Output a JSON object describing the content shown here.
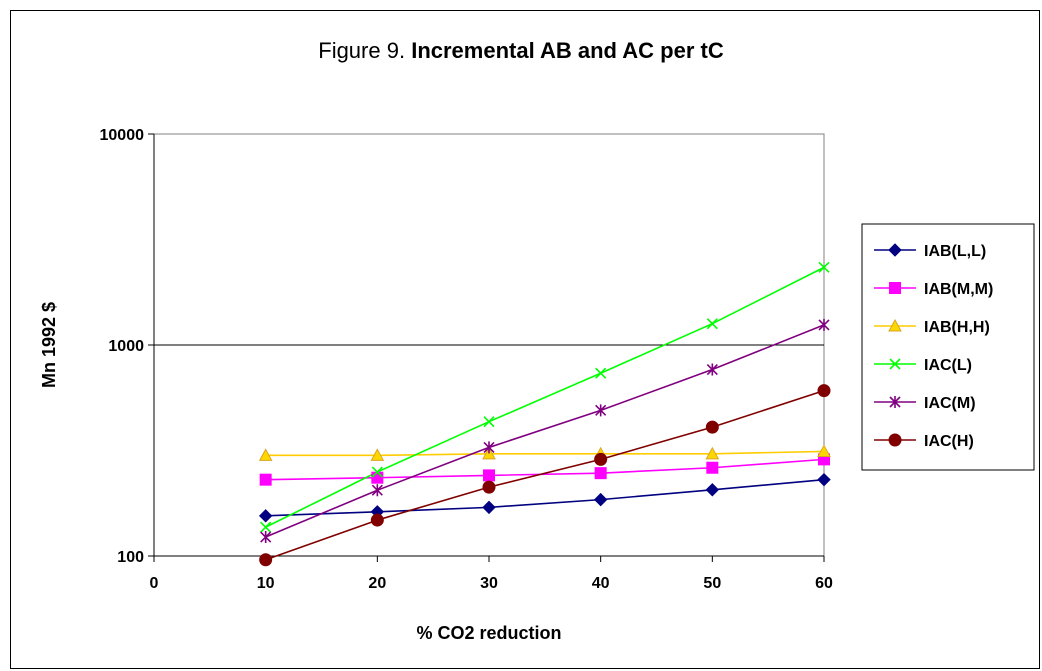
{
  "chart_data": {
    "type": "line",
    "title_prefix": "Figure 9.",
    "title_main": "Incremental AB and AC per tC",
    "xlabel": "% CO2 reduction",
    "ylabel": "Mn 1992 $",
    "x_ticks": [
      "0",
      "10",
      "20",
      "30",
      "40",
      "50",
      "60"
    ],
    "y_ticks": [
      "100",
      "1000",
      "10000"
    ],
    "y_scale": "log",
    "ylim": [
      100,
      10000
    ],
    "xlim": [
      0,
      60
    ],
    "legend_position": "right",
    "grid": "horizontal major",
    "x": [
      10,
      20,
      30,
      40,
      50,
      60
    ],
    "series": [
      {
        "name": "IAB(L,L)",
        "color": "#000080",
        "marker": "diamond",
        "values": [
          155,
          162,
          170,
          185,
          206,
          230
        ]
      },
      {
        "name": "IAB(M,M)",
        "color": "#FF00FF",
        "marker": "square",
        "values": [
          230,
          235,
          241,
          247,
          262,
          287
        ]
      },
      {
        "name": "IAB(H,H)",
        "color": "#FFD700",
        "marker": "triangle",
        "values": [
          300,
          300,
          305,
          305,
          305,
          313
        ]
      },
      {
        "name": "IAC(L)",
        "color": "#00FF00",
        "marker": "x",
        "values": [
          137,
          250,
          433,
          735,
          1262,
          2333
        ]
      },
      {
        "name": "IAC(M)",
        "color": "#800080",
        "marker": "star",
        "values": [
          123,
          205,
          327,
          490,
          765,
          1245
        ]
      },
      {
        "name": "IAC(H)",
        "color": "#800000",
        "marker": "circle",
        "values": [
          96,
          148,
          212,
          287,
          408,
          608
        ]
      }
    ]
  }
}
